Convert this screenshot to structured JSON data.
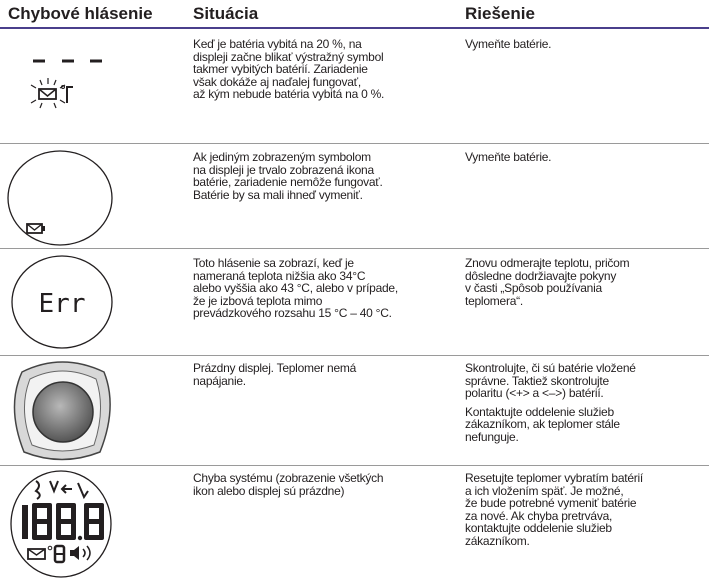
{
  "table": {
    "header": [
      "Chybové hlásenie",
      "Situácia",
      "Riešenie"
    ],
    "rows": [
      {
        "situation": [
          "Keď je batéria vybitá na 20 %, na",
          "displeji začne blikať výstražný symbol",
          "takmer vybitých batérií. Zariadenie",
          "však dokáže aj naďalej fungovať,",
          "až kým nebude batéria vybitá na 0 %."
        ],
        "solution": [
          [
            "Vymeňte batérie."
          ]
        ]
      },
      {
        "situation": [
          "Ak jediným zobrazeným symbolom",
          "na displeji je trvalo zobrazená ikona",
          "batérie, zariadenie nemôže fungovať.",
          "Batérie by sa mali ihneď vymeniť."
        ],
        "solution": [
          [
            "Vymeňte batérie."
          ]
        ]
      },
      {
        "display": "Err",
        "situation": [
          "Toto hlásenie sa zobrazí, keď je",
          "nameraná teplota nižšia ako 34°C",
          "alebo vyššia ako 43 °C, alebo v prípade,",
          "že je izbová teplota mimo",
          "prevádzkového rozsahu 15 °C – 40 °C."
        ],
        "solution": [
          [
            "Znovu odmerajte teplotu, pričom",
            "dôsledne dodržiavajte pokyny",
            "v časti „Spôsob používania",
            "teplomera“."
          ]
        ]
      },
      {
        "situation": [
          "Prázdny displej. Teplomer nemá",
          "napájanie."
        ],
        "solution": [
          [
            "Skontrolujte, či sú batérie vložené",
            "správne. Taktiež skontrolujte",
            "polaritu (<+> a <–>) batérií."
          ],
          [
            "Kontaktujte oddelenie služieb",
            "zákazníkom, ak teplomer stále",
            "nefunguje."
          ]
        ]
      },
      {
        "situation": [
          "Chyba systému (zobrazenie všetkých",
          "ikon alebo displej sú prázdne)"
        ],
        "solution": [
          [
            "Resetujte teplomer vybratím batérií",
            "a ich vložením späť. Je možné,",
            "že bude potrebné vymeniť batérie",
            "za nové. Ak chyba pretrváva,",
            "kontaktujte oddelenie služieb",
            "zákazníkom."
          ]
        ]
      }
    ]
  }
}
